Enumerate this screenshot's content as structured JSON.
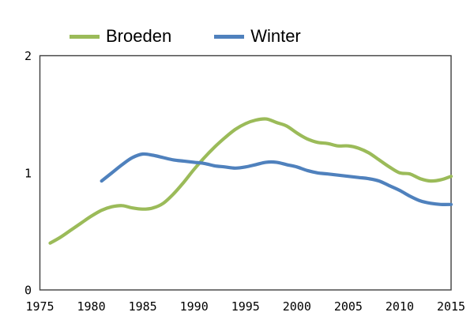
{
  "chart_data": {
    "type": "line",
    "title": "",
    "xlabel": "",
    "ylabel": "",
    "xlim": [
      1975,
      2015
    ],
    "ylim": [
      0,
      2
    ],
    "x_ticks": [
      1975,
      1980,
      1985,
      1990,
      1995,
      2000,
      2005,
      2010,
      2015
    ],
    "y_ticks": [
      0,
      1,
      2
    ],
    "grid": false,
    "legend_position": "top",
    "frame_color": "#3f3f3f",
    "tick_label_color": "#000000",
    "line_width": 4.2,
    "series": [
      {
        "name": "Broeden",
        "color": "#9bbb59",
        "x": [
          1976,
          1977,
          1978,
          1979,
          1980,
          1981,
          1982,
          1983,
          1984,
          1985,
          1986,
          1987,
          1988,
          1989,
          1990,
          1991,
          1992,
          1993,
          1994,
          1995,
          1996,
          1997,
          1998,
          1999,
          2000,
          2001,
          2002,
          2003,
          2004,
          2005,
          2006,
          2007,
          2008,
          2009,
          2010,
          2011,
          2012,
          2013,
          2014,
          2015
        ],
        "y": [
          0.4,
          0.45,
          0.51,
          0.57,
          0.63,
          0.68,
          0.71,
          0.72,
          0.7,
          0.69,
          0.7,
          0.74,
          0.82,
          0.92,
          1.03,
          1.13,
          1.22,
          1.3,
          1.37,
          1.42,
          1.45,
          1.46,
          1.43,
          1.4,
          1.34,
          1.29,
          1.26,
          1.25,
          1.23,
          1.23,
          1.21,
          1.17,
          1.11,
          1.05,
          1.0,
          0.99,
          0.95,
          0.93,
          0.94,
          0.97
        ]
      },
      {
        "name": "Winter",
        "color": "#4f81bd",
        "x": [
          1981,
          1982,
          1983,
          1984,
          1985,
          1986,
          1987,
          1988,
          1989,
          1990,
          1991,
          1992,
          1993,
          1994,
          1995,
          1996,
          1997,
          1998,
          1999,
          2000,
          2001,
          2002,
          2003,
          2004,
          2005,
          2006,
          2007,
          2008,
          2009,
          2010,
          2011,
          2012,
          2013,
          2014,
          2015
        ],
        "y": [
          0.93,
          1.0,
          1.07,
          1.13,
          1.16,
          1.15,
          1.13,
          1.11,
          1.1,
          1.09,
          1.08,
          1.06,
          1.05,
          1.04,
          1.05,
          1.07,
          1.09,
          1.09,
          1.07,
          1.05,
          1.02,
          1.0,
          0.99,
          0.98,
          0.97,
          0.96,
          0.95,
          0.93,
          0.89,
          0.85,
          0.8,
          0.76,
          0.74,
          0.73,
          0.73
        ]
      }
    ]
  }
}
